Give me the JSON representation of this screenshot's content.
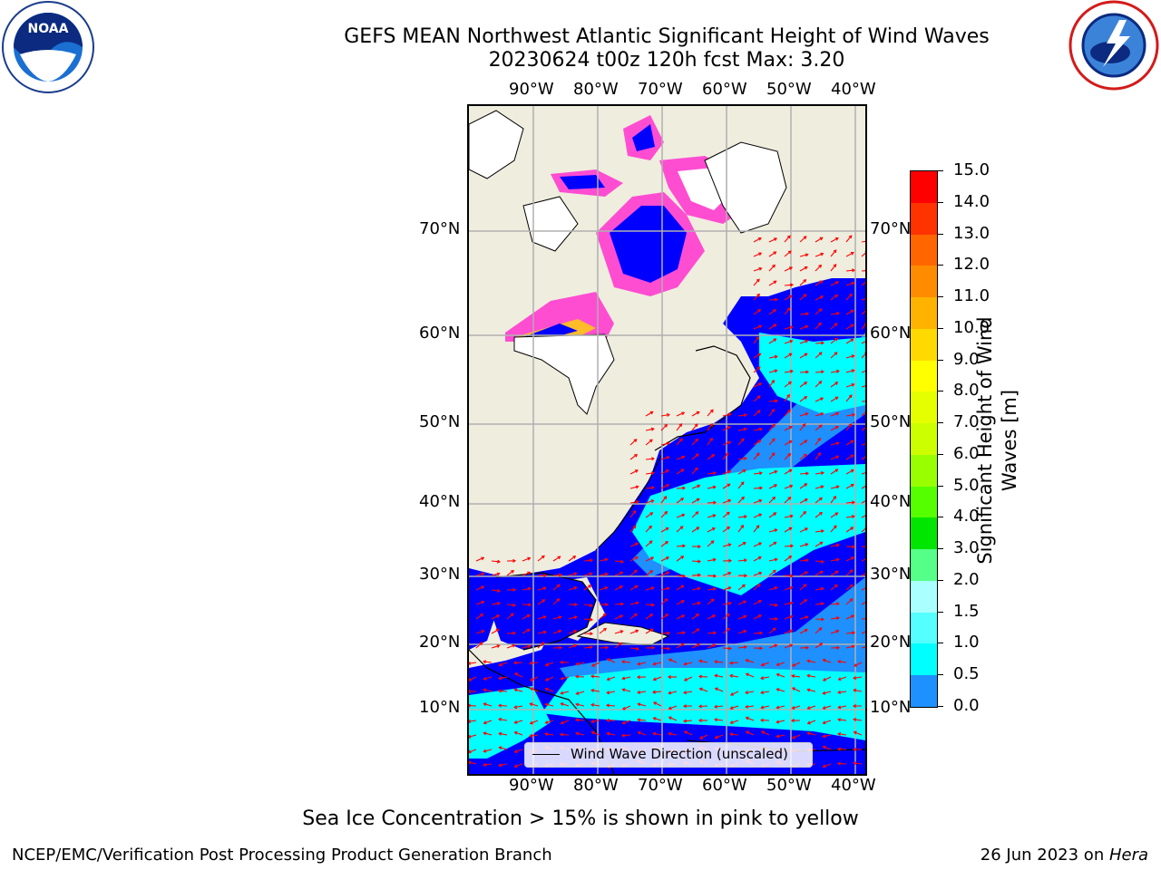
{
  "header": {
    "title_line1": "GEFS MEAN Northwest Atlantic Significant Height of Wind Waves",
    "title_line2": "20230624 t00z 120h fcst   Max: 3.20"
  },
  "logos": {
    "left": {
      "text": "NOAA",
      "ring_text": "NATIONAL OCEANIC AND ATMOSPHERIC ADMINISTRATION · U.S. DEPARTMENT OF COMMERCE"
    },
    "right": {
      "ring_text": "NATIONAL WEATHER SERVICE"
    }
  },
  "map": {
    "lon_labels": [
      "90°W",
      "80°W",
      "70°W",
      "60°W",
      "50°W",
      "40°W"
    ],
    "lat_labels": [
      "70°N",
      "60°N",
      "50°N",
      "40°N",
      "30°N",
      "20°N",
      "10°N"
    ],
    "legend_label": "Wind Wave Direction (unscaled)",
    "colors": {
      "land": "#efedde",
      "ocean_low": "#0000ff",
      "ocean_mid": "#1e90ff",
      "ocean_high": "#00ffff",
      "arrow": "#ff0000",
      "ice_pink": "#ff4dd2",
      "ice_yellow": "#ffd700"
    }
  },
  "colorbar": {
    "label_line1": "Significant Height of Wind",
    "label_line2": "Waves [m]",
    "ticks": [
      "15.0",
      "14.0",
      "13.0",
      "12.0",
      "11.0",
      "10.0",
      "9.0",
      "8.0",
      "7.0",
      "6.0",
      "5.0",
      "4.0",
      "3.0",
      "2.0",
      "1.5",
      "1.0",
      "0.5",
      "0.0"
    ],
    "colors": [
      "#ff0000",
      "#ff3300",
      "#ff6600",
      "#ff8c00",
      "#ffb300",
      "#ffd900",
      "#ffff00",
      "#e6ff00",
      "#ccff00",
      "#99ff00",
      "#55ff00",
      "#00e600",
      "#55ff88",
      "#aaffff",
      "#55ffff",
      "#00ffff",
      "#1e90ff",
      "#0000ff"
    ]
  },
  "caption": "Sea Ice Concentration > 15% is shown in pink to yellow",
  "footer": {
    "left": "NCEP/EMC/Verification Post Processing Product Generation Branch",
    "right_prefix": "26 Jun 2023 on ",
    "right_host": "Hera"
  }
}
